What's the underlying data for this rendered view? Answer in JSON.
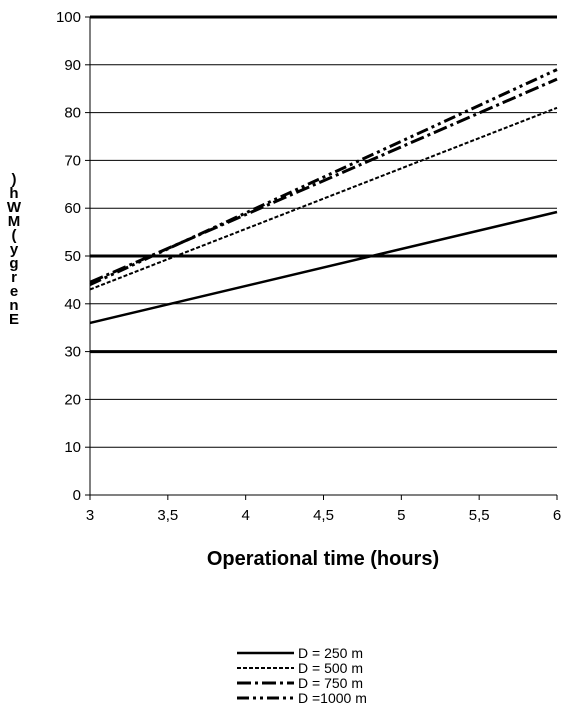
{
  "chart_data": {
    "type": "line",
    "title": "",
    "xlabel": "Operational time  (hours)",
    "ylabel": ")hWM(ygrenE",
    "xlim": [
      3,
      6
    ],
    "ylim": [
      0,
      100
    ],
    "x_ticks": [
      "3",
      "3,5",
      "4",
      "4,5",
      "5",
      "5,5",
      "6"
    ],
    "y_ticks": [
      "0",
      "10",
      "20",
      "30",
      "40",
      "50",
      "60",
      "70",
      "80",
      "90",
      "100"
    ],
    "bold_gridlines": [
      30,
      50,
      100
    ],
    "grid": true,
    "legend_position": "bottom",
    "x": [
      3,
      6
    ],
    "series": [
      {
        "name": "D =  250 m",
        "values": [
          36,
          59.2
        ],
        "style": "solid"
      },
      {
        "name": "D =  500 m",
        "values": [
          43,
          81
        ],
        "style": "dashed"
      },
      {
        "name": "D =  750 m",
        "values": [
          44.5,
          87
        ],
        "style": "dash-dot"
      },
      {
        "name": "D =1000 m",
        "values": [
          44,
          89
        ],
        "style": "dash-dot-dot"
      }
    ]
  }
}
